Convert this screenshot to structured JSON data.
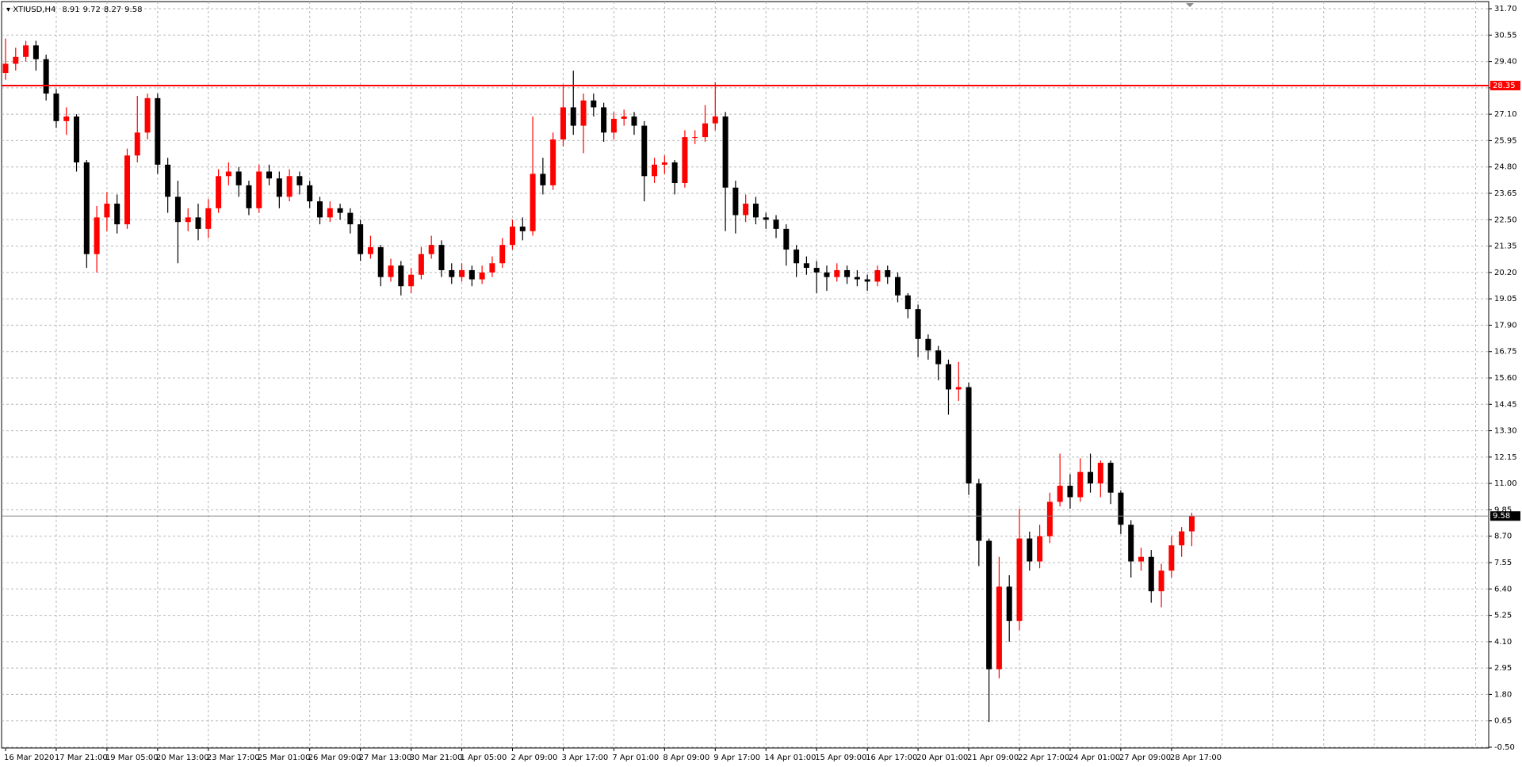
{
  "chart_data": {
    "type": "candlestick",
    "title": "XTIUSD,H4",
    "up_color": "#ff0000",
    "down_color": "#000000",
    "grid": true,
    "ylim": [
      -0.5,
      31.7
    ],
    "yticks": [
      {
        "value": 31.7,
        "label": "31.70"
      },
      30.55,
      {
        "value": 29.4,
        "label": "29.40"
      },
      28.25,
      {
        "value": 27.1,
        "label": "27.10"
      },
      25.95,
      {
        "value": 24.8,
        "label": "24.80"
      },
      23.65,
      {
        "value": 22.5,
        "label": "22.50"
      },
      21.35,
      {
        "value": 20.2,
        "label": "20.20"
      },
      19.05,
      {
        "value": 17.9,
        "label": "17.90"
      },
      16.75,
      {
        "value": 15.6,
        "label": "15.60"
      },
      14.45,
      {
        "value": 13.3,
        "label": "13.30"
      },
      12.15,
      {
        "value": 11,
        "label": "11.00"
      },
      9.85,
      {
        "value": 8.7,
        "label": "8.70"
      },
      7.55,
      {
        "value": 6.4,
        "label": "6.40"
      },
      5.25,
      {
        "value": 4.1,
        "label": "4.10"
      },
      2.95,
      {
        "value": 1.8,
        "label": "1.80"
      },
      0.65,
      {
        "value": -0.5,
        "label": "-0.50"
      }
    ],
    "hlines": [
      {
        "value": 28.35,
        "color": "#ff0000"
      }
    ],
    "price_line_color": "#808080",
    "categories": [
      "16 Mar 2020",
      null,
      null,
      null,
      null,
      "17 Mar 21:00",
      null,
      null,
      null,
      null,
      "19 Mar 05:00",
      null,
      null,
      null,
      null,
      "20 Mar 13:00",
      null,
      null,
      null,
      null,
      "23 Mar 17:00",
      null,
      null,
      null,
      null,
      "25 Mar 01:00",
      null,
      null,
      null,
      null,
      "26 Mar 09:00",
      null,
      null,
      null,
      null,
      "27 Mar 13:00",
      null,
      null,
      null,
      null,
      "30 Mar 21:00",
      null,
      null,
      null,
      null,
      "1 Apr 05:00",
      null,
      null,
      null,
      null,
      "2 Apr 09:00",
      null,
      null,
      null,
      null,
      "3 Apr 17:00",
      null,
      null,
      null,
      null,
      "7 Apr 01:00",
      null,
      null,
      null,
      null,
      "8 Apr 09:00",
      null,
      null,
      null,
      null,
      "9 Apr 17:00",
      null,
      null,
      null,
      null,
      "14 Apr 01:00",
      null,
      null,
      null,
      null,
      "15 Apr 09:00",
      null,
      null,
      null,
      null,
      "16 Apr 17:00",
      null,
      null,
      null,
      null,
      "20 Apr 01:00",
      null,
      null,
      null,
      null,
      "21 Apr 09:00",
      null,
      null,
      null,
      null,
      "22 Apr 17:00",
      null,
      null,
      null,
      null,
      "24 Apr 01:00",
      null,
      null,
      null,
      null,
      "27 Apr 09:00",
      null,
      null,
      null,
      null,
      "28 Apr 17:00",
      null,
      null
    ],
    "open": [
      28.9,
      29.3,
      29.6,
      30.1,
      29.5,
      28.0,
      26.8,
      27.0,
      25.0,
      21.0,
      22.6,
      23.2,
      22.3,
      25.3,
      26.3,
      27.8,
      24.9,
      23.5,
      22.4,
      22.6,
      22.1,
      23.0,
      24.4,
      24.6,
      24.0,
      23.0,
      24.6,
      24.3,
      23.5,
      24.4,
      24.0,
      23.3,
      22.6,
      23.0,
      22.8,
      22.3,
      21.0,
      21.3,
      20.0,
      20.5,
      19.6,
      20.1,
      21.0,
      21.4,
      20.3,
      20.0,
      20.3,
      19.9,
      20.2,
      20.6,
      21.4,
      22.2,
      22.0,
      24.5,
      24.0,
      26.0,
      27.4,
      26.6,
      27.7,
      27.4,
      26.3,
      26.9,
      27.0,
      26.6,
      24.4,
      24.9,
      25.0,
      24.1,
      26.1,
      26.1,
      26.7,
      27.0,
      23.9,
      22.7,
      23.2,
      22.6,
      22.5,
      22.1,
      21.2,
      20.6,
      20.4,
      20.2,
      20.0,
      20.3,
      20.0,
      19.9,
      19.8,
      20.3,
      20.0,
      19.2,
      18.6,
      17.3,
      16.8,
      16.2,
      15.1,
      15.2,
      11.0,
      8.5,
      2.9,
      6.5,
      5.0,
      8.6,
      7.6,
      8.7,
      10.2,
      10.9,
      10.4,
      11.5,
      11.0,
      11.9,
      10.6,
      9.2,
      7.6,
      7.8,
      6.3,
      7.2,
      8.3,
      8.91
    ],
    "high": [
      30.4,
      30.0,
      30.3,
      30.3,
      29.7,
      28.2,
      27.4,
      27.1,
      25.1,
      23.1,
      23.7,
      23.6,
      25.6,
      27.9,
      28.0,
      28.0,
      25.2,
      24.2,
      23.0,
      23.2,
      23.4,
      24.7,
      25.0,
      24.8,
      24.2,
      24.9,
      24.9,
      24.6,
      24.7,
      24.6,
      24.2,
      23.5,
      23.3,
      23.2,
      23.0,
      22.5,
      21.8,
      21.4,
      20.8,
      20.7,
      20.4,
      21.3,
      21.8,
      21.6,
      20.6,
      20.6,
      20.5,
      20.5,
      20.9,
      21.7,
      22.5,
      22.6,
      27.0,
      25.2,
      26.3,
      28.4,
      29.0,
      28.0,
      28.0,
      27.6,
      27.2,
      27.3,
      27.2,
      26.8,
      25.2,
      25.3,
      25.1,
      26.4,
      26.4,
      27.5,
      28.5,
      27.2,
      24.2,
      23.6,
      23.5,
      22.8,
      22.7,
      22.3,
      21.4,
      20.9,
      20.7,
      20.5,
      20.6,
      20.5,
      20.3,
      20.1,
      20.5,
      20.5,
      20.2,
      19.3,
      18.8,
      17.5,
      17.0,
      16.4,
      16.3,
      15.4,
      11.2,
      8.6,
      7.8,
      7.0,
      9.9,
      8.9,
      9.2,
      10.6,
      12.3,
      11.4,
      12.1,
      12.3,
      12.0,
      12.0,
      10.7,
      9.4,
      8.2,
      8.1,
      7.5,
      8.7,
      9.1,
      9.72
    ],
    "low": [
      28.6,
      29.0,
      29.4,
      29.0,
      27.7,
      26.5,
      26.2,
      24.6,
      20.4,
      20.2,
      22.0,
      21.9,
      22.1,
      25.0,
      26.0,
      24.5,
      22.8,
      20.6,
      22.0,
      21.6,
      21.7,
      22.8,
      24.0,
      23.5,
      22.7,
      22.8,
      24.0,
      23.0,
      23.3,
      23.6,
      23.0,
      22.3,
      22.4,
      22.5,
      21.9,
      20.7,
      20.8,
      19.6,
      19.8,
      19.2,
      19.3,
      19.9,
      20.8,
      20.0,
      19.7,
      19.8,
      19.6,
      19.7,
      20.0,
      20.4,
      21.2,
      21.6,
      21.8,
      23.6,
      23.8,
      25.7,
      26.2,
      25.4,
      27.0,
      25.9,
      26.0,
      26.6,
      26.2,
      23.3,
      24.1,
      24.5,
      23.6,
      23.9,
      25.8,
      25.9,
      26.4,
      22.0,
      21.9,
      22.4,
      22.3,
      22.1,
      21.7,
      20.5,
      20.0,
      20.1,
      19.3,
      19.4,
      19.8,
      19.7,
      19.6,
      19.4,
      19.6,
      19.7,
      18.9,
      18.2,
      16.5,
      16.4,
      15.5,
      14.0,
      14.6,
      10.5,
      7.4,
      0.6,
      2.5,
      4.1,
      4.6,
      7.2,
      7.3,
      8.4,
      10.0,
      9.9,
      10.2,
      10.6,
      10.4,
      10.1,
      8.8,
      6.9,
      7.2,
      5.8,
      5.6,
      6.9,
      7.8,
      8.27
    ],
    "close": [
      29.3,
      29.6,
      30.1,
      29.5,
      28.0,
      26.8,
      27.0,
      25.0,
      21.0,
      22.6,
      23.2,
      22.3,
      25.3,
      26.3,
      27.8,
      24.9,
      23.5,
      22.4,
      22.6,
      22.1,
      23.0,
      24.4,
      24.6,
      24.0,
      23.0,
      24.6,
      24.3,
      23.5,
      24.4,
      24.0,
      23.3,
      22.6,
      23.0,
      22.8,
      22.3,
      21.0,
      21.3,
      20.0,
      20.5,
      19.6,
      20.1,
      21.0,
      21.4,
      20.3,
      20.0,
      20.3,
      19.9,
      20.2,
      20.6,
      21.4,
      22.2,
      22.0,
      24.5,
      24.0,
      26.0,
      27.4,
      26.6,
      27.7,
      27.4,
      26.3,
      26.9,
      27.0,
      26.6,
      24.4,
      24.9,
      25.0,
      24.1,
      26.1,
      26.1,
      26.7,
      27.0,
      23.9,
      22.7,
      23.2,
      22.6,
      22.5,
      22.1,
      21.2,
      20.6,
      20.4,
      20.2,
      20.0,
      20.3,
      20.0,
      19.9,
      19.8,
      20.3,
      20.0,
      19.2,
      18.6,
      17.3,
      16.8,
      16.2,
      15.1,
      15.2,
      11.0,
      8.5,
      2.9,
      6.5,
      5.0,
      8.6,
      7.6,
      8.7,
      10.2,
      10.9,
      10.4,
      11.5,
      11.0,
      11.9,
      10.6,
      9.2,
      7.6,
      7.8,
      6.3,
      7.2,
      8.3,
      8.91,
      9.58
    ],
    "hline_values": [
      28.35
    ]
  }
}
